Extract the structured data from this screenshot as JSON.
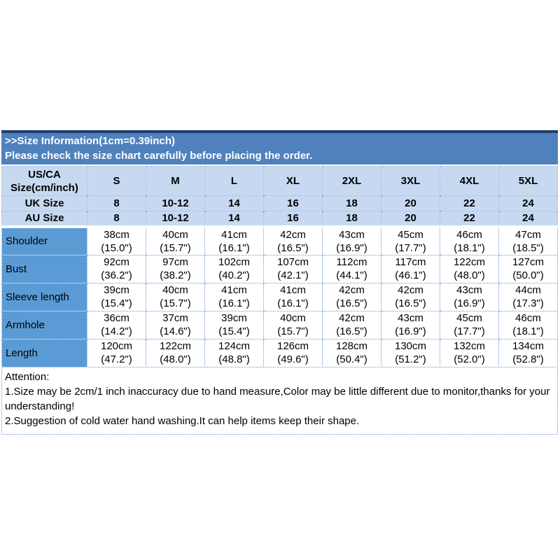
{
  "banner": {
    "title": ">>Size Information(1cm=0.39inch)",
    "subtitle": "Please check the size chart carefully before placing the order."
  },
  "table": {
    "corner_header": "US/CA\nSize(cm/inch)",
    "columns": [
      "S",
      "M",
      "L",
      "XL",
      "2XL",
      "3XL",
      "4XL",
      "5XL"
    ],
    "size_rows": [
      {
        "label": "UK Size",
        "values": [
          "8",
          "10-12",
          "14",
          "16",
          "18",
          "20",
          "22",
          "24"
        ]
      },
      {
        "label": "AU Size",
        "values": [
          "8",
          "10-12",
          "14",
          "16",
          "18",
          "20",
          "22",
          "24"
        ]
      }
    ],
    "measurement_rows": [
      {
        "label": "Shoulder",
        "values": [
          "38cm\n(15.0\")",
          "40cm\n(15.7\")",
          "41cm\n(16.1\")",
          "42cm\n(16.5\")",
          "43cm\n(16.9\")",
          "45cm\n(17.7\")",
          "46cm\n(18.1\")",
          "47cm\n(18.5\")"
        ]
      },
      {
        "label": "Bust",
        "values": [
          "92cm\n(36.2\")",
          "97cm\n(38.2\")",
          "102cm\n(40.2\")",
          "107cm\n(42.1\")",
          "112cm\n(44.1\")",
          "117cm\n(46.1\")",
          "122cm\n(48.0\")",
          "127cm\n(50.0\")"
        ]
      },
      {
        "label": "Sleeve length",
        "values": [
          "39cm\n(15.4\")",
          "40cm\n(15.7\")",
          "41cm\n(16.1\")",
          "41cm\n(16.1\")",
          "42cm\n(16.5\")",
          "42cm\n(16.5\")",
          "43cm\n(16.9\")",
          "44cm\n(17.3\")"
        ]
      },
      {
        "label": "Armhole",
        "values": [
          "36cm\n(14.2\")",
          "37cm\n(14.6\")",
          "39cm\n(15.4\")",
          "40cm\n(15.7\")",
          "42cm\n(16.5\")",
          "43cm\n(16.9\")",
          "45cm\n(17.7\")",
          "46cm\n(18.1\")"
        ]
      },
      {
        "label": "Length",
        "values": [
          "120cm\n(47.2\")",
          "122cm\n(48.0\")",
          "124cm\n(48.8\")",
          "126cm\n(49.6\")",
          "128cm\n(50.4\")",
          "130cm\n(51.2\")",
          "132cm\n(52.0\")",
          "134cm\n(52.8\")"
        ]
      }
    ]
  },
  "attention": {
    "title": "Attention:",
    "line1": "1.Size may be 2cm/1 inch inaccuracy due to hand measure,Color may be little different due to monitor,thanks for your understanding!",
    "line2": "2.Suggestion of cold water hand washing.It can help items keep their shape."
  },
  "colors": {
    "banner_bg": "#4f81bd",
    "banner_top_line": "#1f3f6e",
    "header_bg": "#c6d9f0",
    "row_label_bg": "#5b9bd5",
    "dotted_border": "#6f9ac9"
  }
}
